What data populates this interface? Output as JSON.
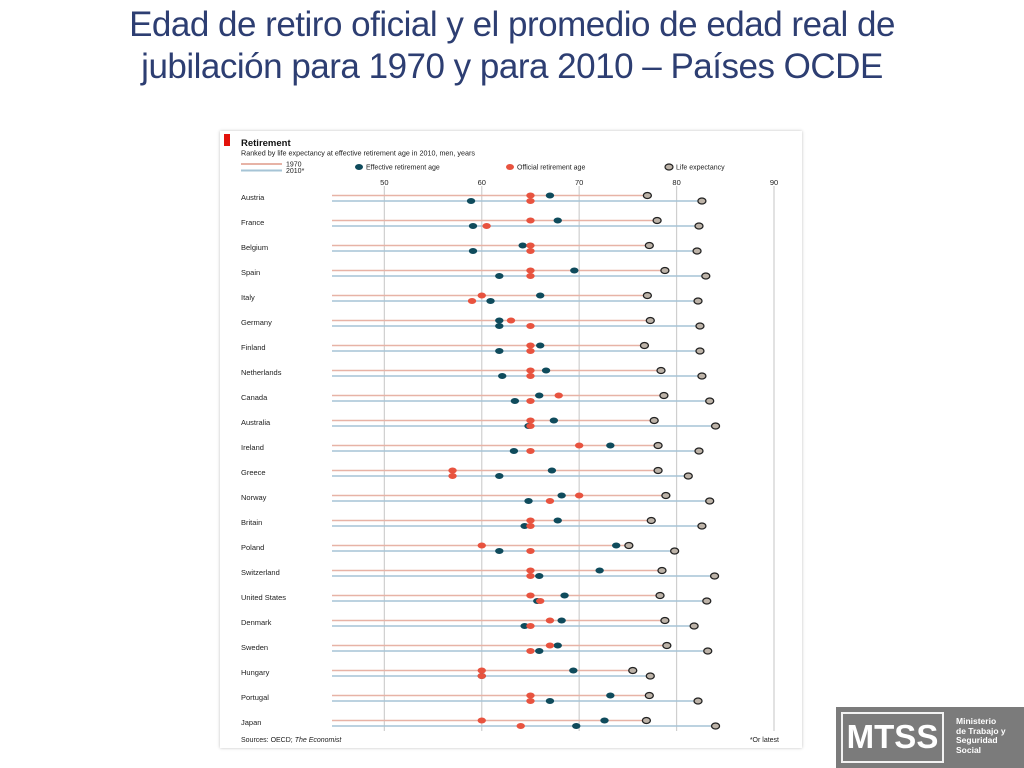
{
  "slide": {
    "title_line1": "Edad de retiro oficial y el promedio de edad real de",
    "title_line2": "jubilación para 1970 y para 2010 – Países OCDE"
  },
  "logo": {
    "mark": "MTSS",
    "lines": [
      "Ministerio",
      "de Trabajo y",
      "Seguridad",
      "Social"
    ]
  },
  "colors": {
    "line_1970": "#e7b3a6",
    "line_2010": "#a6c4d6",
    "effective": "#0f4b5c",
    "official": "#e8533f",
    "life_fill": "#bdb3a8",
    "life_stroke": "#222222",
    "brand_red": "#e3120b"
  },
  "chart_data": {
    "type": "scatter",
    "title": "Retirement",
    "subtitle": "Ranked by life expectancy at effective retirement age in 2010, men, years",
    "legend": {
      "line_labels": [
        "1970",
        "2010*"
      ],
      "markers": [
        "Effective retirement age",
        "Official retirement age",
        "Life expectancy"
      ],
      "placement": "top"
    },
    "xlim": [
      47.5,
      90
    ],
    "xticks": [
      50,
      60,
      70,
      80,
      90
    ],
    "grid": true,
    "source_label": "Sources: OECD; ",
    "source_italic": "The Economist",
    "footnote": "*Or latest",
    "countries": [
      {
        "name": "Austria",
        "y1970": {
          "official": 65,
          "effective": 67,
          "life": 77
        },
        "y2010": {
          "official": 65,
          "effective": 58.9,
          "life": 82.6
        }
      },
      {
        "name": "France",
        "y1970": {
          "official": 65,
          "effective": 67.8,
          "life": 78
        },
        "y2010": {
          "official": 60.5,
          "effective": 59.1,
          "life": 82.3
        }
      },
      {
        "name": "Belgium",
        "y1970": {
          "official": 65,
          "effective": 64.2,
          "life": 77.2
        },
        "y2010": {
          "official": 65,
          "effective": 59.1,
          "life": 82.1
        }
      },
      {
        "name": "Spain",
        "y1970": {
          "official": 65,
          "effective": 69.5,
          "life": 78.8
        },
        "y2010": {
          "official": 65,
          "effective": 61.8,
          "life": 83
        }
      },
      {
        "name": "Italy",
        "y1970": {
          "official": 60,
          "effective": 66,
          "life": 77
        },
        "y2010": {
          "official": 59,
          "effective": 60.9,
          "life": 82.2
        }
      },
      {
        "name": "Germany",
        "y1970": {
          "official": 63,
          "effective": 61.8,
          "life": 77.3
        },
        "y2010": {
          "official": 65,
          "effective": 61.8,
          "life": 82.4
        }
      },
      {
        "name": "Finland",
        "y1970": {
          "official": 65,
          "effective": 66,
          "life": 76.7
        },
        "y2010": {
          "official": 65,
          "effective": 61.8,
          "life": 82.4
        }
      },
      {
        "name": "Netherlands",
        "y1970": {
          "official": 65,
          "effective": 66.6,
          "life": 78.4
        },
        "y2010": {
          "official": 65,
          "effective": 62.1,
          "life": 82.6
        }
      },
      {
        "name": "Canada",
        "y1970": {
          "official": 67.9,
          "effective": 65.9,
          "life": 78.7
        },
        "y2010": {
          "official": 65,
          "effective": 63.4,
          "life": 83.4
        }
      },
      {
        "name": "Australia",
        "y1970": {
          "official": 65,
          "effective": 67.4,
          "life": 77.7
        },
        "y2010": {
          "official": 65,
          "effective": 64.8,
          "life": 84
        }
      },
      {
        "name": "Ireland",
        "y1970": {
          "official": 70,
          "effective": 73.2,
          "life": 78.1
        },
        "y2010": {
          "official": 65,
          "effective": 63.3,
          "life": 82.3
        }
      },
      {
        "name": "Greece",
        "y1970": {
          "official": 57,
          "effective": 67.2,
          "life": 78.1
        },
        "y2010": {
          "official": 57,
          "effective": 61.8,
          "life": 81.2
        }
      },
      {
        "name": "Norway",
        "y1970": {
          "official": 70,
          "effective": 68.2,
          "life": 78.9
        },
        "y2010": {
          "official": 67,
          "effective": 64.8,
          "life": 83.4
        }
      },
      {
        "name": "Britain",
        "y1970": {
          "official": 65,
          "effective": 67.8,
          "life": 77.4
        },
        "y2010": {
          "official": 65,
          "effective": 64.4,
          "life": 82.6
        }
      },
      {
        "name": "Poland",
        "y1970": {
          "official": 60,
          "effective": 73.8,
          "life": 75.1
        },
        "y2010": {
          "official": 65,
          "effective": 61.8,
          "life": 79.8
        }
      },
      {
        "name": "Switzerland",
        "y1970": {
          "official": 65,
          "effective": 72.1,
          "life": 78.5
        },
        "y2010": {
          "official": 65,
          "effective": 65.9,
          "life": 83.9
        }
      },
      {
        "name": "United States",
        "y1970": {
          "official": 65,
          "effective": 68.5,
          "life": 78.3
        },
        "y2010": {
          "official": 66,
          "effective": 65.7,
          "life": 83.1
        }
      },
      {
        "name": "Denmark",
        "y1970": {
          "official": 67,
          "effective": 68.2,
          "life": 78.8
        },
        "y2010": {
          "official": 65,
          "effective": 64.4,
          "life": 81.8
        }
      },
      {
        "name": "Sweden",
        "y1970": {
          "official": 67,
          "effective": 67.8,
          "life": 79
        },
        "y2010": {
          "official": 65,
          "effective": 65.9,
          "life": 83.2
        }
      },
      {
        "name": "Hungary",
        "y1970": {
          "official": 60,
          "effective": 69.4,
          "life": 75.5
        },
        "y2010": {
          "official": 60,
          "effective": 60,
          "life": 77.3
        }
      },
      {
        "name": "Portugal",
        "y1970": {
          "official": 65,
          "effective": 73.2,
          "life": 77.2
        },
        "y2010": {
          "official": 65,
          "effective": 67,
          "life": 82.2
        }
      },
      {
        "name": "Japan",
        "y1970": {
          "official": 60,
          "effective": 72.6,
          "life": 76.9
        },
        "y2010": {
          "official": 64,
          "effective": 69.7,
          "life": 84
        }
      }
    ]
  }
}
